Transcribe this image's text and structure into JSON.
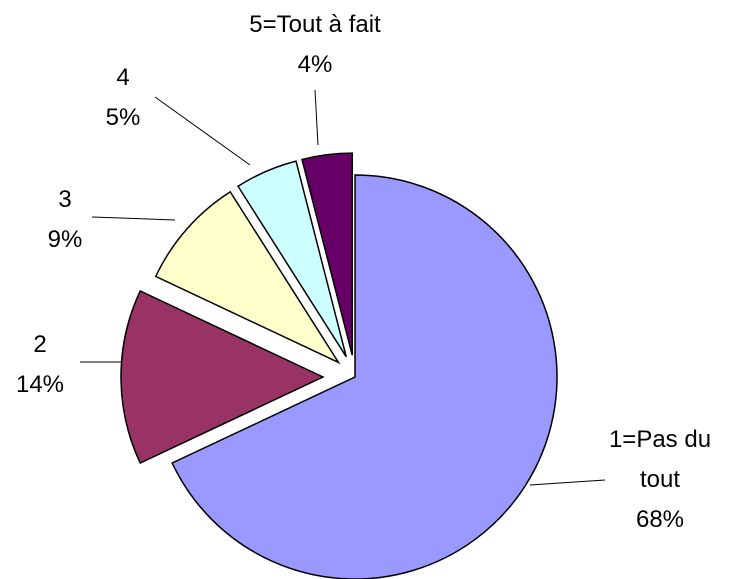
{
  "chart_data": {
    "type": "pie",
    "categories": [
      "1=Pas du tout",
      "2",
      "3",
      "4",
      "5=Tout à fait"
    ],
    "values": [
      68,
      14,
      9,
      5,
      4
    ],
    "value_labels": [
      "68%",
      "14%",
      "9%",
      "5%",
      "4%"
    ],
    "colors": [
      "#9999ff",
      "#993366",
      "#ffffcc",
      "#ccffff",
      "#660066"
    ]
  }
}
